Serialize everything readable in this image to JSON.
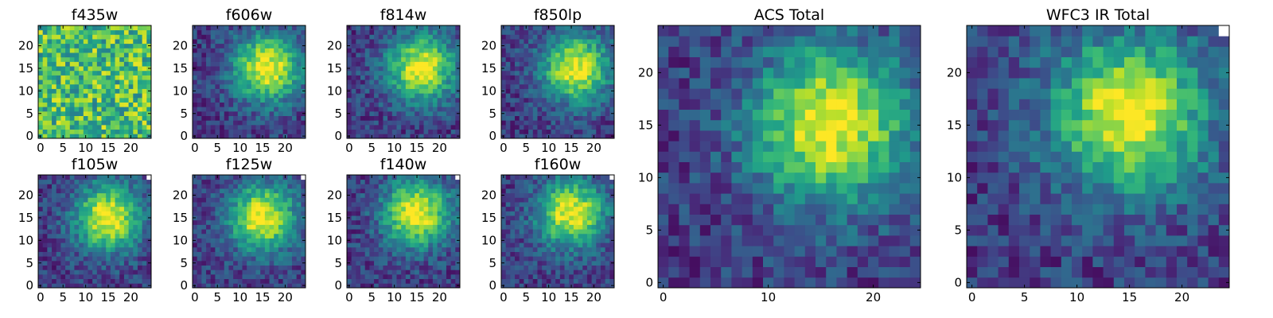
{
  "figure": {
    "colormap": "viridis",
    "background": "#ffffff"
  },
  "chart_data": [
    {
      "type": "heatmap",
      "title": "f435w",
      "xticks": [
        0,
        5,
        10,
        15,
        20
      ],
      "yticks": [
        0,
        5,
        10,
        15,
        20
      ],
      "xlim": [
        -0.5,
        24.5
      ],
      "ylim": [
        -0.5,
        24.5
      ],
      "grid": false,
      "pattern": "noise",
      "peak": [
        15,
        15
      ]
    },
    {
      "type": "heatmap",
      "title": "f606w",
      "xticks": [
        0,
        5,
        10,
        15,
        20
      ],
      "yticks": [
        0,
        5,
        10,
        15,
        20
      ],
      "xlim": [
        -0.5,
        24.5
      ],
      "ylim": [
        -0.5,
        24.5
      ],
      "grid": false,
      "pattern": "blob",
      "peak": [
        16,
        15
      ]
    },
    {
      "type": "heatmap",
      "title": "f814w",
      "xticks": [
        0,
        5,
        10,
        15,
        20
      ],
      "yticks": [
        0,
        5,
        10,
        15,
        20
      ],
      "xlim": [
        -0.5,
        24.5
      ],
      "ylim": [
        -0.5,
        24.5
      ],
      "grid": false,
      "pattern": "blob",
      "peak": [
        16,
        15
      ]
    },
    {
      "type": "heatmap",
      "title": "f850lp",
      "xticks": [
        0,
        5,
        10,
        15,
        20
      ],
      "yticks": [
        0,
        5,
        10,
        15,
        20
      ],
      "xlim": [
        -0.5,
        24.5
      ],
      "ylim": [
        -0.5,
        24.5
      ],
      "grid": false,
      "pattern": "blob",
      "peak": [
        16,
        15
      ]
    },
    {
      "type": "heatmap",
      "title": "f105w",
      "xticks": [
        0,
        5,
        10,
        15,
        20
      ],
      "yticks": [
        0,
        5,
        10,
        15,
        20
      ],
      "xlim": [
        -0.5,
        24.5
      ],
      "ylim": [
        -0.5,
        24.5
      ],
      "grid": false,
      "pattern": "blob",
      "peak": [
        15,
        15
      ],
      "blank_corner": true
    },
    {
      "type": "heatmap",
      "title": "f125w",
      "xticks": [
        0,
        5,
        10,
        15,
        20
      ],
      "yticks": [
        0,
        5,
        10,
        15,
        20
      ],
      "xlim": [
        -0.5,
        24.5
      ],
      "ylim": [
        -0.5,
        24.5
      ],
      "grid": false,
      "pattern": "blob",
      "peak": [
        15,
        15
      ],
      "blank_corner": true
    },
    {
      "type": "heatmap",
      "title": "f140w",
      "xticks": [
        0,
        5,
        10,
        15,
        20
      ],
      "yticks": [
        0,
        5,
        10,
        15,
        20
      ],
      "xlim": [
        -0.5,
        24.5
      ],
      "ylim": [
        -0.5,
        24.5
      ],
      "grid": false,
      "pattern": "blob",
      "peak": [
        15,
        16
      ],
      "blank_corner": true
    },
    {
      "type": "heatmap",
      "title": "f160w",
      "xticks": [
        0,
        5,
        10,
        15,
        20
      ],
      "yticks": [
        0,
        5,
        10,
        15,
        20
      ],
      "xlim": [
        -0.5,
        24.5
      ],
      "ylim": [
        -0.5,
        24.5
      ],
      "grid": false,
      "pattern": "blob",
      "peak": [
        15,
        16
      ],
      "blank_corner": true
    },
    {
      "type": "heatmap",
      "title": "ACS Total",
      "xticks": [
        0,
        10,
        20
      ],
      "yticks": [
        0,
        5,
        10,
        15,
        20
      ],
      "xlim": [
        -0.5,
        24.5
      ],
      "ylim": [
        -0.5,
        24.5
      ],
      "grid": false,
      "pattern": "blob",
      "peak": [
        16,
        15
      ]
    },
    {
      "type": "heatmap",
      "title": "WFC3 IR Total",
      "xticks": [
        0,
        5,
        10,
        15,
        20
      ],
      "yticks": [
        0,
        5,
        10,
        15,
        20
      ],
      "xlim": [
        -0.5,
        24.5
      ],
      "ylim": [
        -0.5,
        24.5
      ],
      "grid": false,
      "pattern": "blob",
      "peak": [
        15,
        16
      ],
      "blank_corner": true
    }
  ]
}
